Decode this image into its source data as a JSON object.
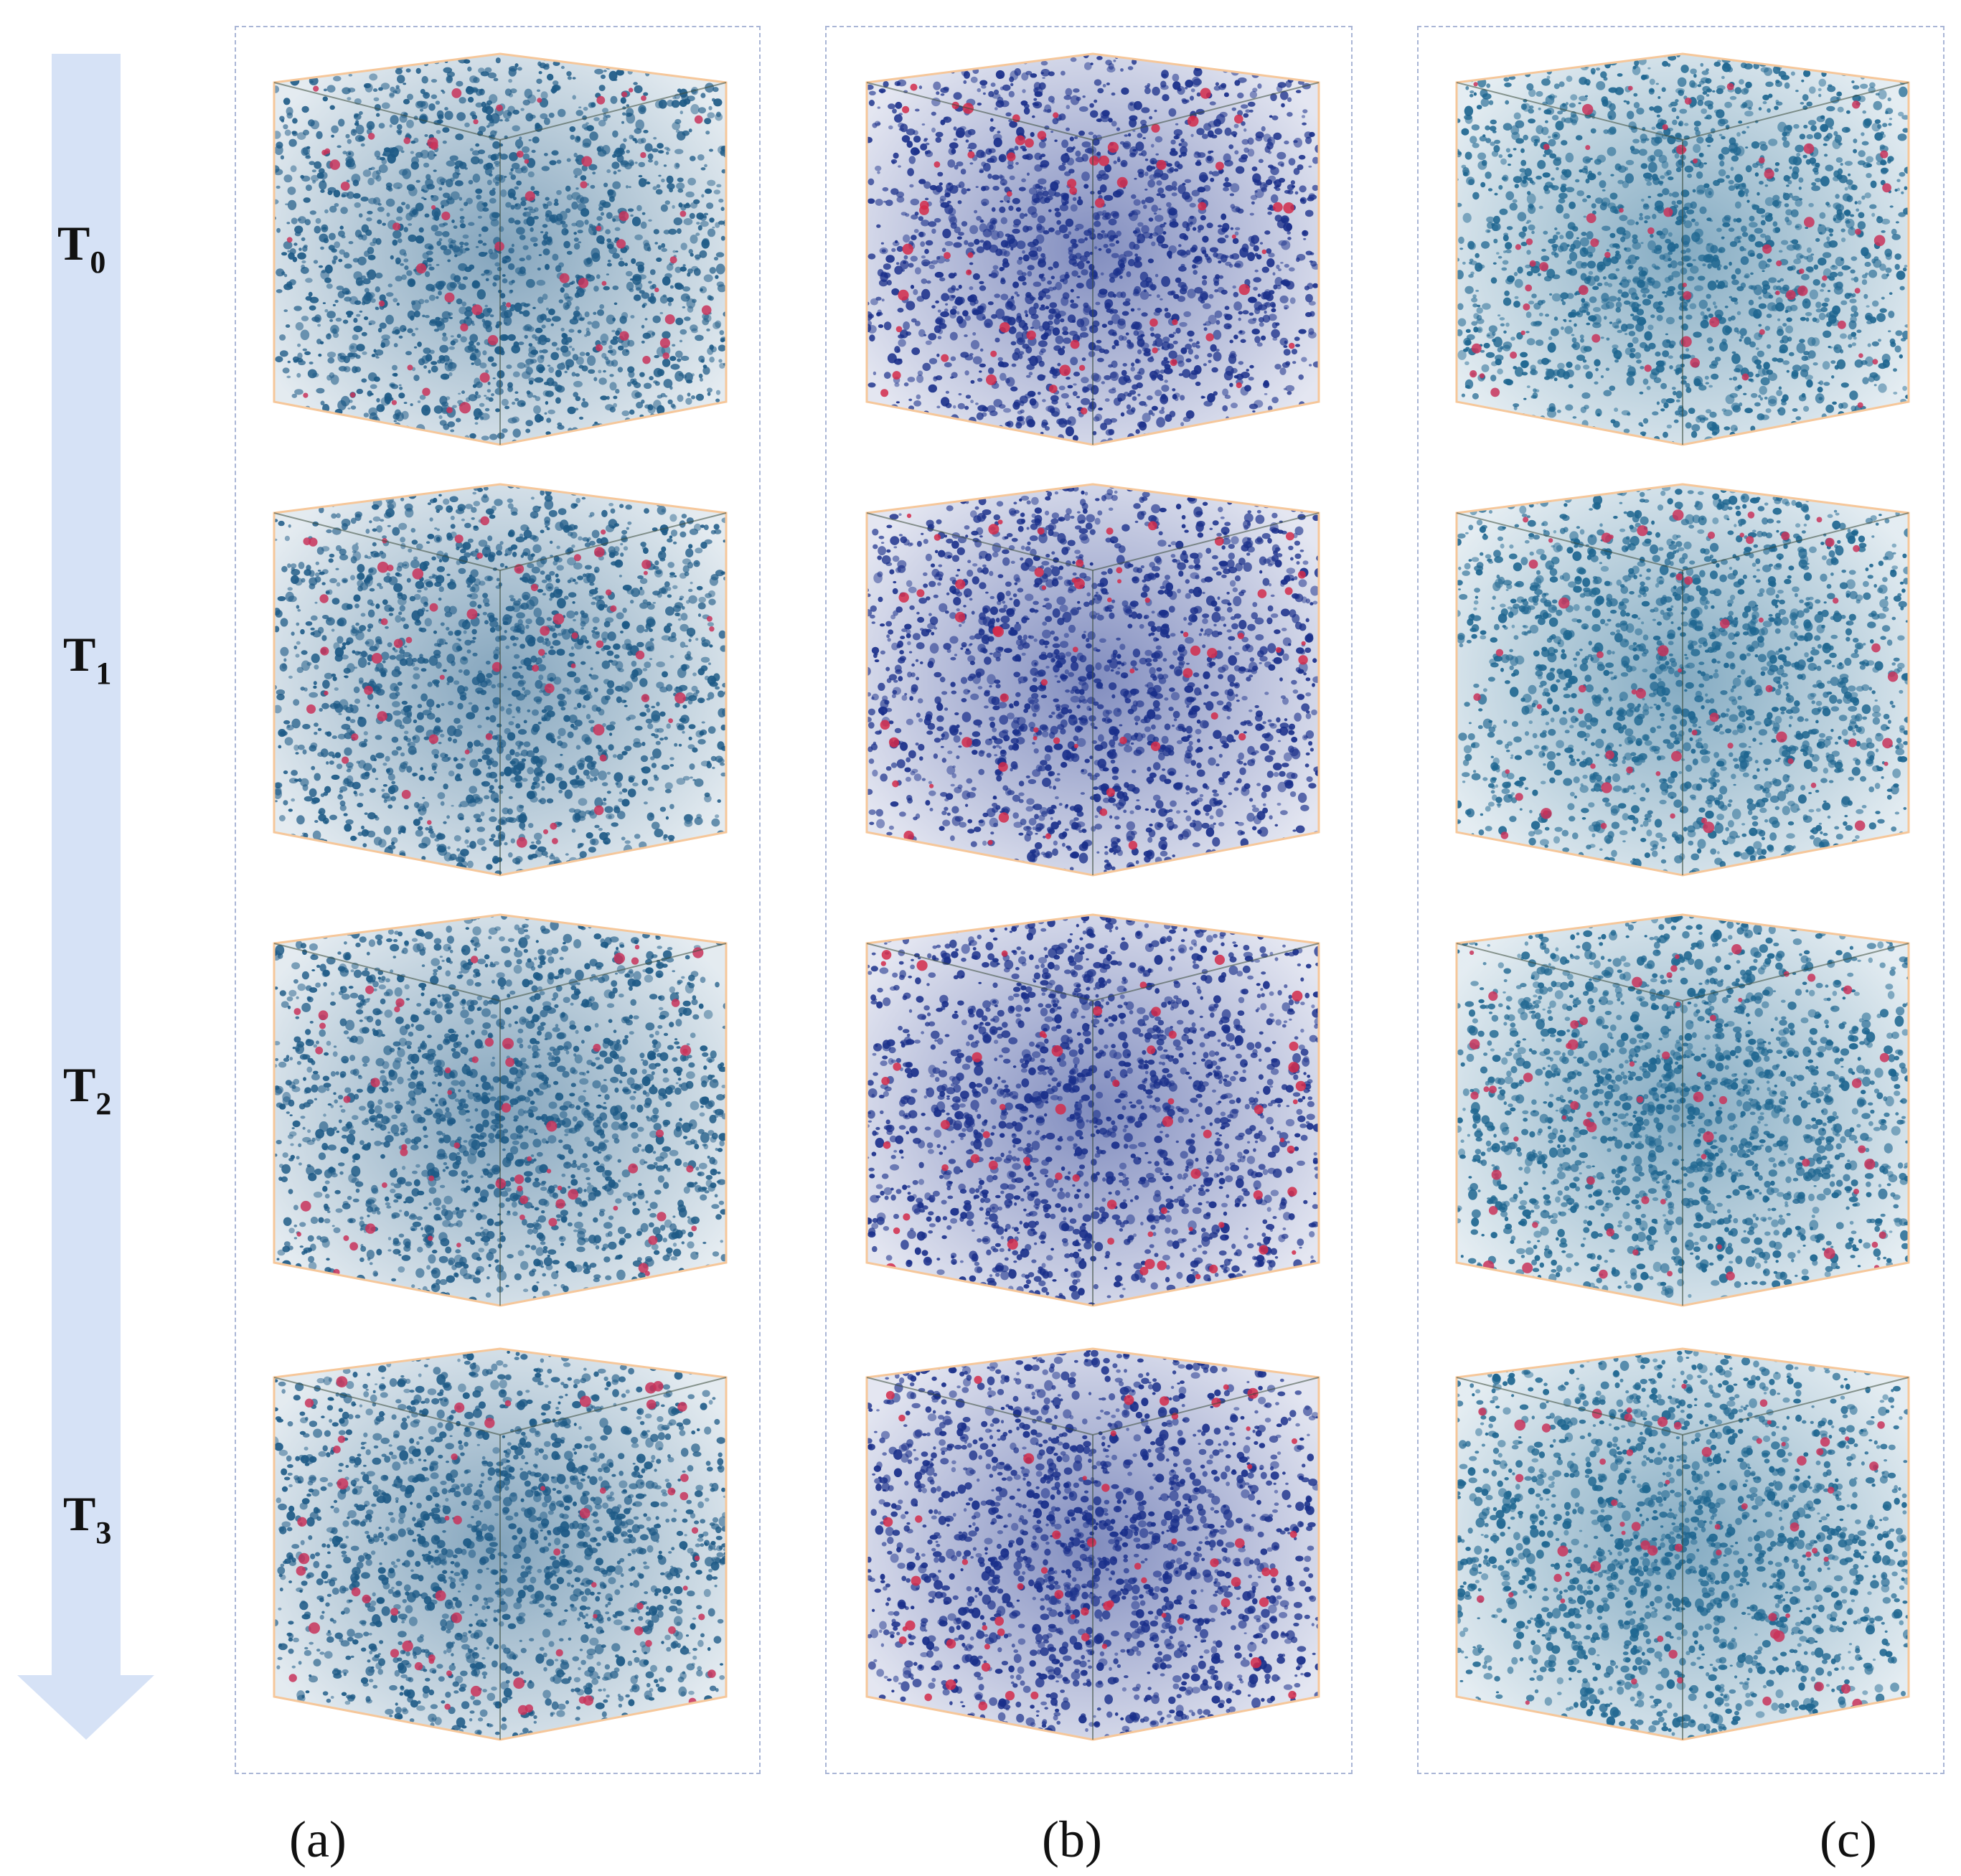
{
  "time_steps": [
    {
      "main": "T",
      "sub": "0"
    },
    {
      "main": "T",
      "sub": "1"
    },
    {
      "main": "T",
      "sub": "2"
    },
    {
      "main": "T",
      "sub": "3"
    }
  ],
  "panels": [
    {
      "label": "(a)",
      "color_scheme": "teal-blue",
      "particle_color": "#1e5a86",
      "accent_color": "#c8335a"
    },
    {
      "label": "(b)",
      "color_scheme": "navy-blue",
      "particle_color": "#1a2f8a",
      "accent_color": "#d22a4a"
    },
    {
      "label": "(c)",
      "color_scheme": "teal-blue",
      "particle_color": "#1f6690",
      "accent_color": "#c8335a"
    }
  ],
  "colors": {
    "arrow": "#d6e2f6",
    "frame": "#aab6d6",
    "box_edge": "#f6c79a",
    "inner_edge": "#3a4a3a"
  }
}
